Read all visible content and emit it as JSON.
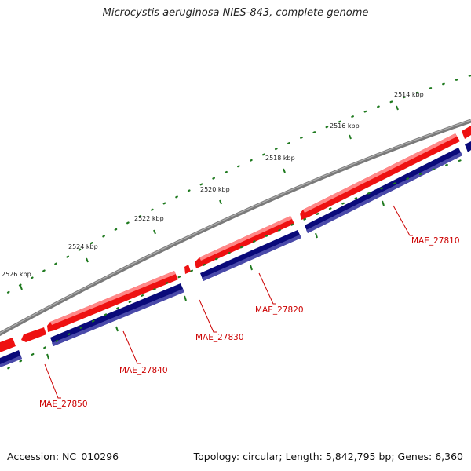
{
  "title": "Microcystis aeruginosa NIES-843, complete genome",
  "footer": {
    "accession": "Accession: NC_010296",
    "summary": "Topology: circular; Length: 5,842,795 bp; Genes: 6,360"
  },
  "scale_labels": [
    "2514 kbp",
    "2516 kbp",
    "2518 kbp",
    "2520 kbp",
    "2522 kbp",
    "2524 kbp",
    "2526 kbp"
  ],
  "genes": [
    "MAE_27810",
    "MAE_27820",
    "MAE_27830",
    "MAE_27840",
    "MAE_27850"
  ],
  "colors": {
    "backbone": "#7a7a7a",
    "forward_strand": "#ee1111",
    "reverse_strand": "#0a0a7a",
    "scale_ticks": "#1f7a1f",
    "label_text": "#cc0000"
  }
}
